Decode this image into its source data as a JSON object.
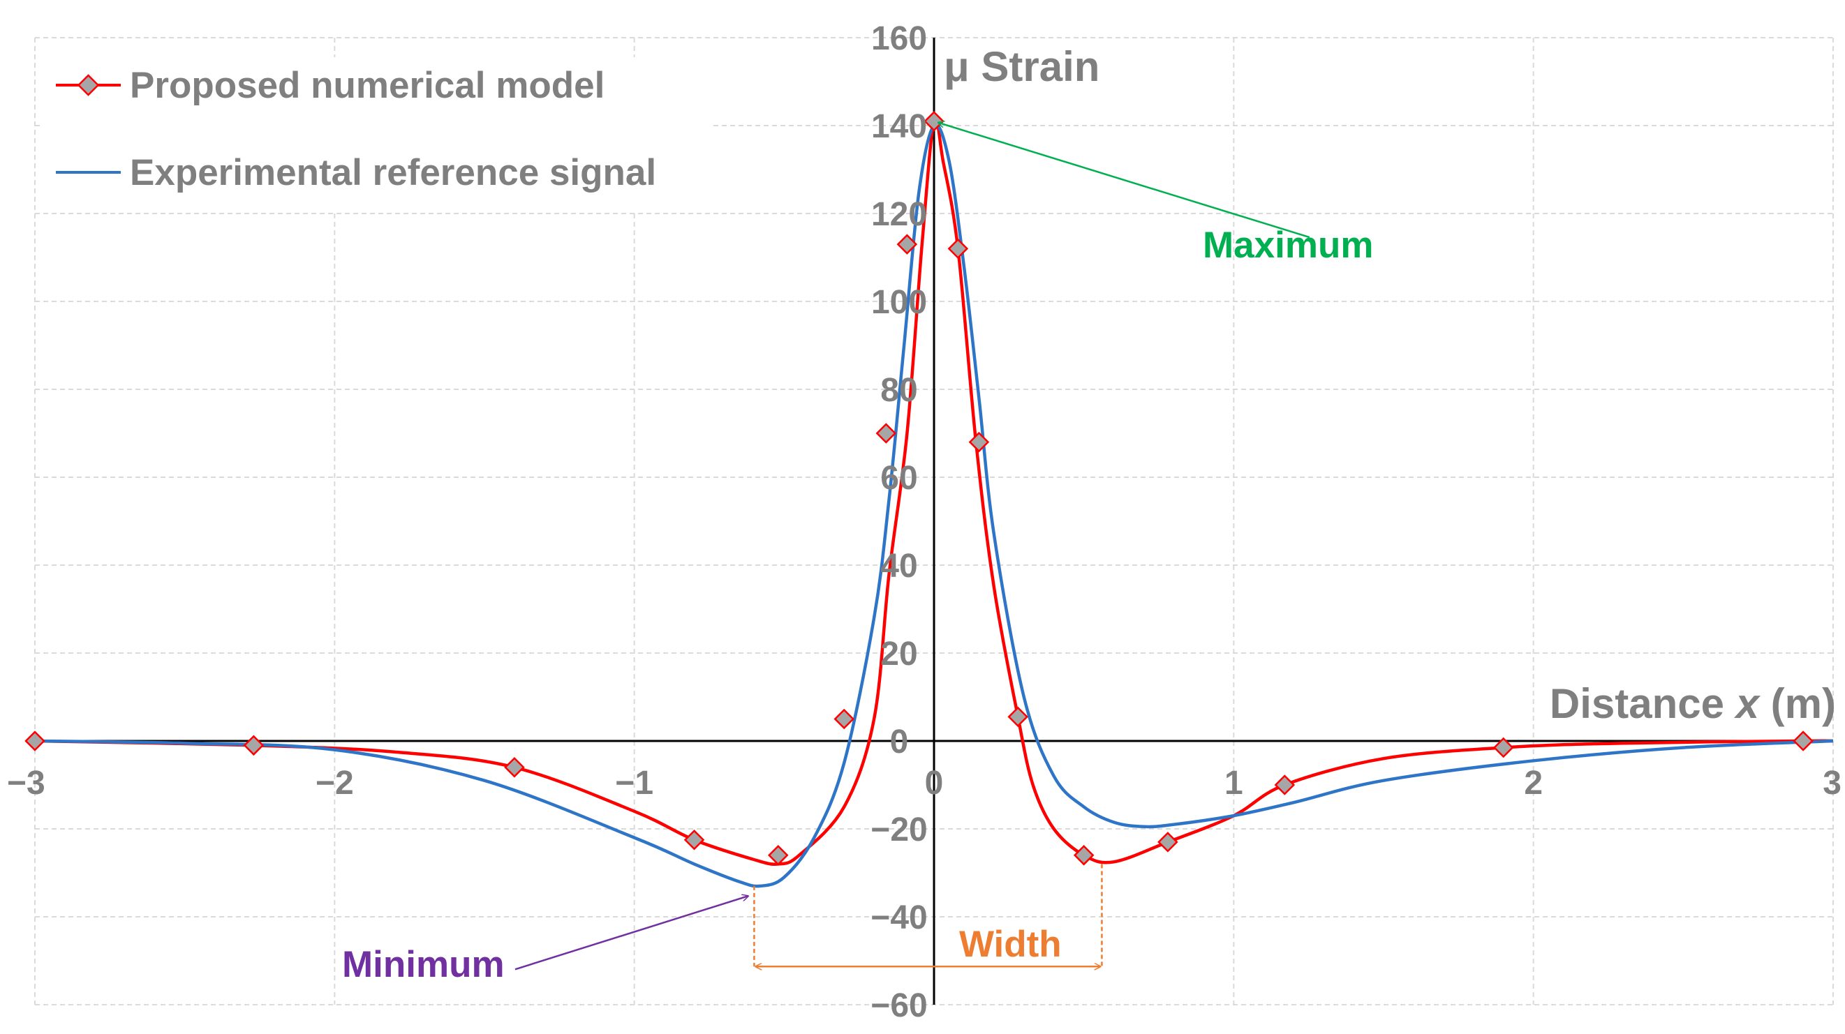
{
  "chart_data": {
    "type": "line",
    "title": "",
    "xlabel": {
      "prefix": "Distance ",
      "var": "x",
      "suffix": " (m)"
    },
    "ylabel": "μ Strain",
    "xlim": [
      -3,
      3
    ],
    "ylim": [
      -60,
      160
    ],
    "x_ticks": [
      -3,
      -2,
      -1,
      0,
      1,
      2,
      3
    ],
    "x_tick_labels": [
      "−3",
      "−2",
      "−1",
      "0",
      "1",
      "2",
      "3"
    ],
    "y_ticks": [
      -60,
      -40,
      -20,
      0,
      20,
      40,
      60,
      80,
      100,
      120,
      140,
      160
    ],
    "y_tick_labels": [
      "−60",
      "−40",
      "−20",
      "0",
      "20",
      "40",
      "60",
      "80",
      "100",
      "120",
      "140",
      "160"
    ],
    "grid": true,
    "legend_position": "top-left",
    "series": [
      {
        "name": "Proposed numerical model",
        "color": "#ff0000",
        "marker": "diamond",
        "marker_fill": "#a6a6a6",
        "x": [
          -3.0,
          -2.27,
          -1.8,
          -1.4,
          -1.0,
          -0.8,
          -0.6,
          -0.52,
          -0.45,
          -0.3,
          -0.2,
          -0.15,
          -0.09,
          -0.04,
          0.0,
          0.03,
          0.08,
          0.14,
          0.2,
          0.28,
          0.33,
          0.4,
          0.5,
          0.6,
          0.78,
          1.0,
          1.17,
          1.5,
          1.9,
          2.3,
          2.9,
          3.0
        ],
        "y": [
          0,
          -1,
          -2.5,
          -6,
          -16,
          -22.5,
          -27,
          -28,
          -26,
          -15,
          5,
          38,
          70,
          113,
          141,
          132,
          112,
          68,
          35,
          5.5,
          -10,
          -20,
          -26,
          -27.5,
          -23,
          -17,
          -10,
          -4,
          -1.5,
          -0.5,
          0,
          0
        ],
        "marker_x": [
          -3.0,
          -2.27,
          -1.4,
          -0.8,
          -0.52,
          -0.3,
          -0.16,
          -0.09,
          0.0,
          0.08,
          0.15,
          0.28,
          0.5,
          0.78,
          1.17,
          1.9,
          2.9
        ],
        "marker_y": [
          0,
          -1,
          -6,
          -22.5,
          -26,
          5,
          70,
          113,
          141,
          112,
          68,
          5.5,
          -26,
          -23,
          -10,
          -1.5,
          0
        ]
      },
      {
        "name": "Experimental reference signal",
        "color": "#2e75c8",
        "marker": "none",
        "x": [
          -3.0,
          -2.5,
          -2.0,
          -1.5,
          -1.0,
          -0.8,
          -0.65,
          -0.58,
          -0.5,
          -0.4,
          -0.3,
          -0.2,
          -0.15,
          -0.1,
          -0.05,
          0.0,
          0.05,
          0.1,
          0.15,
          0.2,
          0.3,
          0.4,
          0.5,
          0.6,
          0.7,
          0.8,
          1.0,
          1.2,
          1.5,
          2.0,
          2.5,
          3.0
        ],
        "y": [
          0,
          -0.5,
          -2,
          -9,
          -22,
          -28,
          -32,
          -33,
          -31,
          -22,
          -5,
          28,
          55,
          90,
          125,
          140,
          132,
          108,
          78,
          47,
          10,
          -8,
          -15,
          -18.5,
          -19.5,
          -19,
          -17,
          -14,
          -9,
          -4.5,
          -1.5,
          0
        ]
      }
    ],
    "annotations": {
      "maximum": {
        "label": "Maximum",
        "color": "#00b050",
        "target": [
          0.0,
          141
        ],
        "label_at": [
          0.95,
          113
        ]
      },
      "minimum": {
        "label": "Minimum",
        "color": "#7030a0",
        "target": [
          -0.62,
          -34
        ],
        "label_at": [
          -1.4,
          -51
        ]
      },
      "width": {
        "label": "Width",
        "color": "#ed7d31",
        "from_x": -0.6,
        "to_x": 0.56,
        "y": -51,
        "top_y_left": -33,
        "top_y_right": -28
      }
    }
  }
}
